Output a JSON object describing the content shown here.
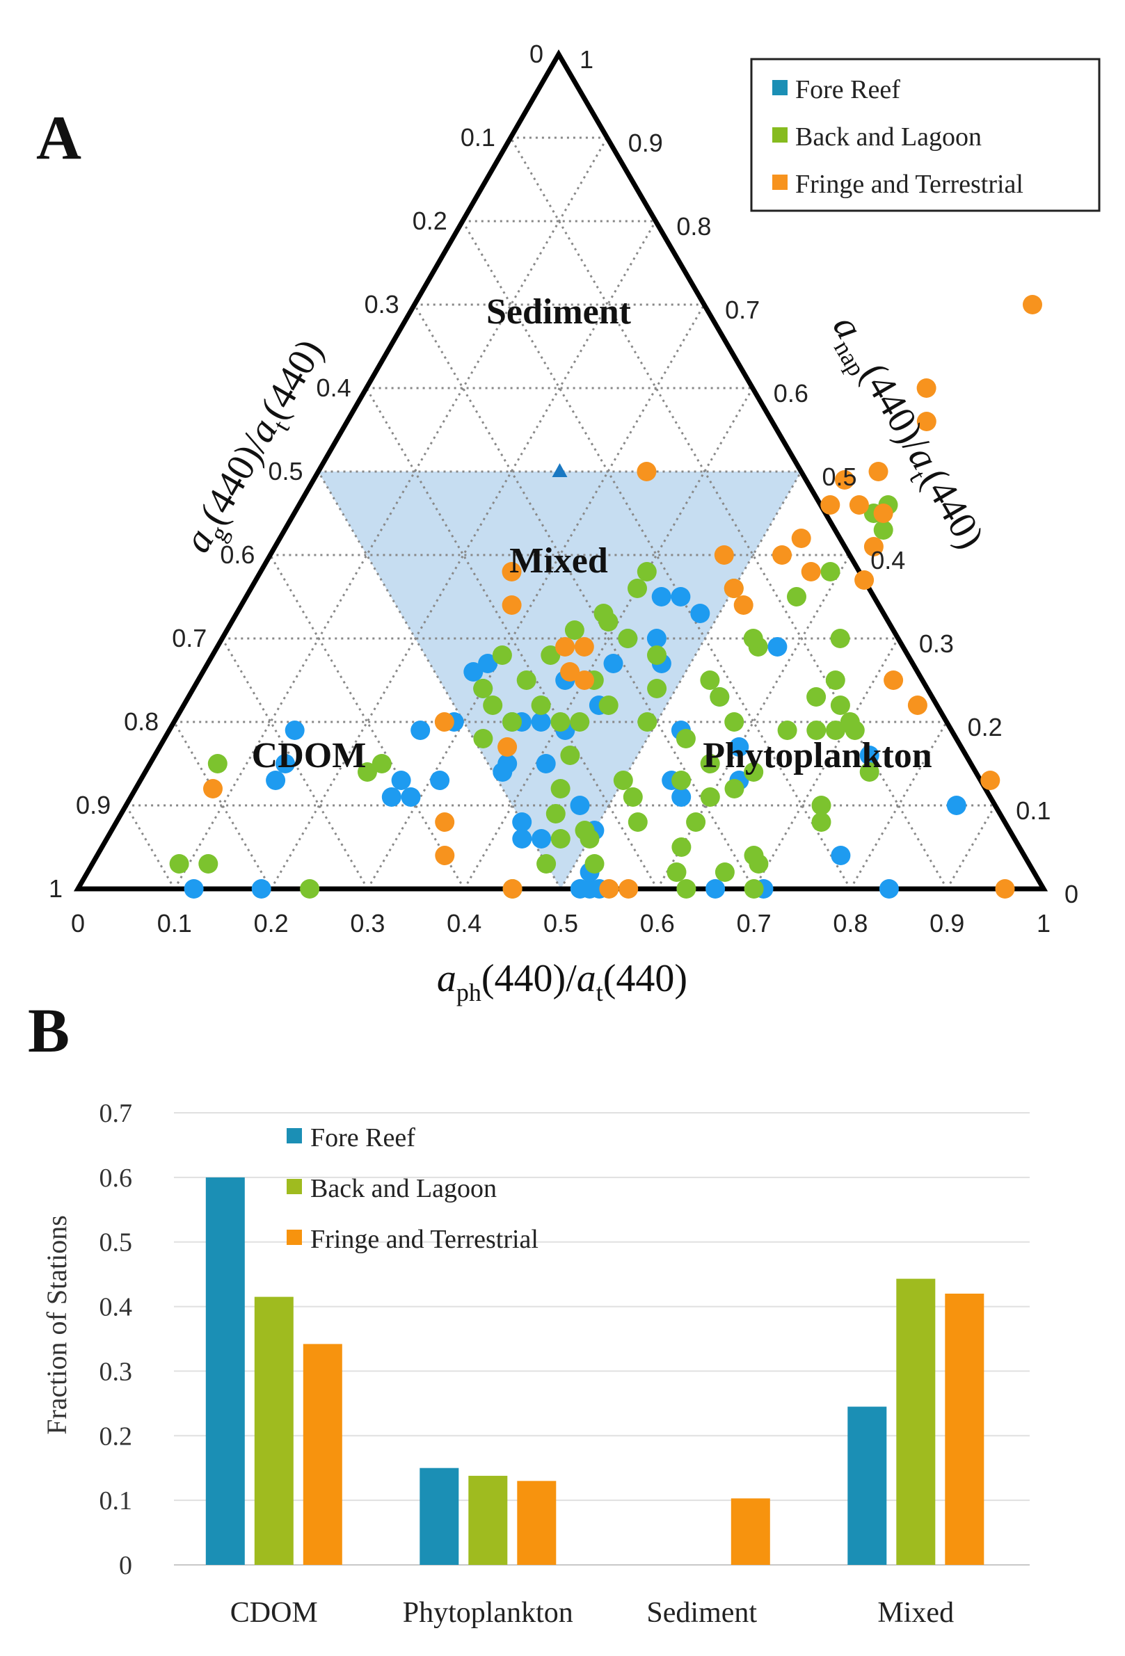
{
  "colors": {
    "fore_reef": "#1e9bf0",
    "back_lagoon": "#7cc32e",
    "fringe_terrestrial": "#f7931e",
    "bar_fore_reef": "#1b8fb5",
    "bar_back_lagoon": "#9fbb1f",
    "bar_fringe_terrestrial": "#f7930e",
    "mixed_fill": "#bcd7ee",
    "grid": "#888888",
    "marker": "#1a78c2"
  },
  "chart_data": [
    {
      "type": "scatter",
      "subtype": "ternary",
      "panel_label": "A",
      "axes": {
        "bottom_title_parts": [
          "a",
          "ph",
          "(440)/",
          "a",
          "t",
          "(440)"
        ],
        "left_title_parts": [
          "a",
          "g",
          "(440)/",
          "a",
          "t",
          "(440)"
        ],
        "right_title_parts": [
          "a",
          "nap",
          "(440)/",
          "a",
          "t",
          "(440)"
        ],
        "bottom_ticks": [
          "0",
          "0.1",
          "0.2",
          "0.3",
          "0.4",
          "0.5",
          "0.6",
          "0.7",
          "0.8",
          "0.9",
          "1"
        ],
        "left_ticks": [
          "0",
          "0.1",
          "0.2",
          "0.3",
          "0.4",
          "0.5",
          "0.6",
          "0.7",
          "0.8",
          "0.9",
          "1"
        ],
        "right_ticks": [
          "1",
          "0.9",
          "0.8",
          "0.7",
          "0.6",
          "0.5",
          "0.4",
          "0.3",
          "0.2",
          "0.1",
          "0"
        ]
      },
      "regions": {
        "sediment": "Sediment",
        "mixed": "Mixed",
        "cdom": "CDOM",
        "phytoplankton": "Phytoplankton"
      },
      "mixed_region_nap_max": 0.5,
      "legend": [
        {
          "name": "Fore Reef",
          "color": "#1b8fb5"
        },
        {
          "name": "Back and Lagoon",
          "color": "#86bb1f"
        },
        {
          "name": "Fringe and Terrestrial",
          "color": "#f7931e"
        }
      ],
      "marker_point": {
        "ph": 0.25,
        "nap": 0.5
      },
      "series": [
        {
          "name": "Fore Reef",
          "color": "#1e9bf0",
          "points": [
            [
              0.13,
              0.19
            ],
            [
              0.14,
              0.15
            ],
            [
              0.14,
              0.13
            ],
            [
              0.12,
              0.0
            ],
            [
              0.19,
              0.0
            ],
            [
              0.27,
              0.11
            ],
            [
              0.29,
              0.11
            ],
            [
              0.31,
              0.13
            ],
            [
              0.27,
              0.13
            ],
            [
              0.26,
              0.19
            ],
            [
              0.29,
              0.2
            ],
            [
              0.3,
              0.24
            ],
            [
              0.29,
              0.27
            ],
            [
              0.28,
              0.26
            ],
            [
              0.35,
              0.2
            ],
            [
              0.36,
              0.2
            ],
            [
              0.38,
              0.2
            ],
            [
              0.37,
              0.15
            ],
            [
              0.37,
              0.14
            ],
            [
              0.41,
              0.19
            ],
            [
              0.43,
              0.22
            ],
            [
              0.42,
              0.27
            ],
            [
              0.42,
              0.3
            ],
            [
              0.45,
              0.3
            ],
            [
              0.47,
              0.27
            ],
            [
              0.45,
              0.35
            ],
            [
              0.43,
              0.35
            ],
            [
              0.48,
              0.33
            ],
            [
              0.42,
              0.08
            ],
            [
              0.43,
              0.06
            ],
            [
              0.45,
              0.06
            ],
            [
              0.47,
              0.1
            ],
            [
              0.5,
              0.07
            ],
            [
              0.52,
              0.0
            ],
            [
              0.53,
              0.0
            ],
            [
              0.54,
              0.0
            ],
            [
              0.55,
              0.13
            ],
            [
              0.57,
              0.11
            ],
            [
              0.6,
              0.17
            ],
            [
              0.66,
              0.0
            ],
            [
              0.71,
              0.0
            ],
            [
              0.74,
              0.16
            ],
            [
              0.77,
              0.04
            ],
            [
              0.84,
              0.0
            ],
            [
              0.86,
              0.1
            ],
            [
              0.53,
              0.19
            ],
            [
              0.55,
              0.23
            ],
            [
              0.58,
              0.29
            ],
            [
              0.62,
              0.13
            ],
            [
              0.52,
              0.02
            ],
            [
              0.41,
              0.15
            ],
            [
              0.38,
              0.25
            ]
          ]
        },
        {
          "name": "Back and Lagoon",
          "color": "#7cc32e",
          "points": [
            [
              0.07,
              0.15
            ],
            [
              0.09,
              0.03
            ],
            [
              0.12,
              0.03
            ],
            [
              0.23,
              0.14
            ],
            [
              0.24,
              0.15
            ],
            [
              0.24,
              0.0
            ],
            [
              0.3,
              0.24
            ],
            [
              0.3,
              0.28
            ],
            [
              0.32,
              0.22
            ],
            [
              0.34,
              0.25
            ],
            [
              0.35,
              0.28
            ],
            [
              0.36,
              0.31
            ],
            [
              0.38,
              0.33
            ],
            [
              0.39,
              0.32
            ],
            [
              0.4,
              0.36
            ],
            [
              0.4,
              0.38
            ],
            [
              0.41,
              0.25
            ],
            [
              0.42,
              0.2
            ],
            [
              0.43,
              0.16
            ],
            [
              0.44,
              0.12
            ],
            [
              0.45,
              0.09
            ],
            [
              0.47,
              0.06
            ],
            [
              0.49,
              0.07
            ],
            [
              0.5,
              0.06
            ],
            [
              0.47,
              0.03
            ],
            [
              0.45,
              0.0
            ],
            [
              0.5,
              0.13
            ],
            [
              0.52,
              0.11
            ],
            [
              0.54,
              0.18
            ],
            [
              0.55,
              0.23
            ],
            [
              0.56,
              0.29
            ],
            [
              0.57,
              0.35
            ],
            [
              0.59,
              0.38
            ],
            [
              0.6,
              0.45
            ],
            [
              0.61,
              0.46
            ],
            [
              0.62,
              0.43
            ],
            [
              0.64,
              0.3
            ],
            [
              0.65,
              0.23
            ],
            [
              0.64,
              0.19
            ],
            [
              0.63,
              0.14
            ],
            [
              0.62,
              0.12
            ],
            [
              0.6,
              0.08
            ],
            [
              0.6,
              0.05
            ],
            [
              0.61,
              0.02
            ],
            [
              0.63,
              0.0
            ],
            [
              0.66,
              0.02
            ],
            [
              0.68,
              0.04
            ],
            [
              0.69,
              0.03
            ],
            [
              0.7,
              0.0
            ],
            [
              0.72,
              0.1
            ],
            [
              0.73,
              0.08
            ],
            [
              0.75,
              0.14
            ],
            [
              0.71,
              0.19
            ],
            [
              0.69,
              0.19
            ],
            [
              0.67,
              0.19
            ],
            [
              0.58,
              0.2
            ],
            [
              0.56,
              0.13
            ],
            [
              0.54,
              0.08
            ],
            [
              0.52,
              0.03
            ],
            [
              0.49,
              0.2
            ],
            [
              0.48,
              0.24
            ],
            [
              0.46,
              0.28
            ],
            [
              0.5,
              0.36
            ],
            [
              0.53,
              0.25
            ],
            [
              0.55,
              0.3
            ],
            [
              0.44,
              0.22
            ],
            [
              0.4,
              0.2
            ],
            [
              0.37,
              0.22
            ],
            [
              0.35,
              0.2
            ],
            [
              0.33,
              0.18
            ],
            [
              0.42,
              0.3
            ],
            [
              0.66,
              0.25
            ],
            [
              0.68,
              0.22
            ],
            [
              0.7,
              0.2
            ],
            [
              0.58,
              0.15
            ],
            [
              0.6,
              0.11
            ]
          ]
        },
        {
          "name": "Fringe and Terrestrial",
          "color": "#f7931e",
          "points": [
            [
              0.08,
              0.12
            ],
            [
              0.26,
              0.38
            ],
            [
              0.28,
              0.34
            ],
            [
              0.34,
              0.5
            ],
            [
              0.36,
              0.29
            ],
            [
              0.38,
              0.29
            ],
            [
              0.38,
              0.26
            ],
            [
              0.4,
              0.25
            ],
            [
              0.28,
              0.2
            ],
            [
              0.36,
              0.17
            ],
            [
              0.34,
              0.08
            ],
            [
              0.36,
              0.04
            ],
            [
              0.45,
              0.0
            ],
            [
              0.55,
              0.0
            ],
            [
              0.57,
              0.0
            ],
            [
              0.96,
              0.0
            ],
            [
              0.53,
              0.4
            ],
            [
              0.54,
              0.42
            ],
            [
              0.55,
              0.46
            ],
            [
              0.55,
              0.49
            ],
            [
              0.58,
              0.5
            ],
            [
              0.6,
              0.56
            ],
            [
              0.58,
              0.6
            ],
            [
              0.64,
              0.7
            ],
            [
              0.63,
              0.37
            ],
            [
              0.62,
              0.41
            ],
            [
              0.61,
              0.45
            ],
            [
              0.58,
              0.46
            ],
            [
              0.57,
              0.38
            ],
            [
              0.5,
              0.36
            ],
            [
              0.52,
              0.34
            ],
            [
              0.47,
              0.4
            ],
            [
              0.72,
              0.25
            ],
            [
              0.76,
              0.22
            ],
            [
              0.88,
              0.13
            ]
          ]
        }
      ]
    },
    {
      "type": "bar",
      "panel_label": "B",
      "categories": [
        "CDOM",
        "Phytoplankton",
        "Sediment",
        "Mixed"
      ],
      "series": [
        {
          "name": "Fore Reef",
          "color": "#1b8fb5",
          "values": [
            0.6,
            0.15,
            0.0,
            0.245
          ]
        },
        {
          "name": "Back and Lagoon",
          "color": "#9fbb1f",
          "values": [
            0.415,
            0.138,
            0.0,
            0.443
          ]
        },
        {
          "name": "Fringe and Terrestrial",
          "color": "#f7930e",
          "values": [
            0.342,
            0.13,
            0.103,
            0.42
          ]
        }
      ],
      "ylabel": "Fraction of Stations",
      "ylim": [
        0,
        0.7
      ],
      "yticks": [
        "0",
        "0.1",
        "0.2",
        "0.3",
        "0.4",
        "0.5",
        "0.6",
        "0.7"
      ],
      "grid": true,
      "legend_position": "top-left"
    }
  ]
}
